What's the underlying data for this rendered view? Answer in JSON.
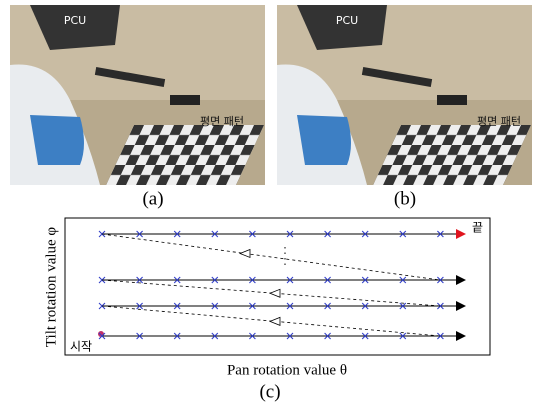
{
  "panels": [
    {
      "robot_label": "PCU",
      "pattern_label": "평면 패턴",
      "caption": "(a)"
    },
    {
      "robot_label": "PCU",
      "pattern_label": "평면 패턴",
      "caption": "(b)"
    }
  ],
  "diagram": {
    "end_label": "끝",
    "start_label": "시작",
    "y_axis_label": "Tilt rotation value φ",
    "x_axis_label": "Pan rotation value θ",
    "caption": "(c)"
  }
}
